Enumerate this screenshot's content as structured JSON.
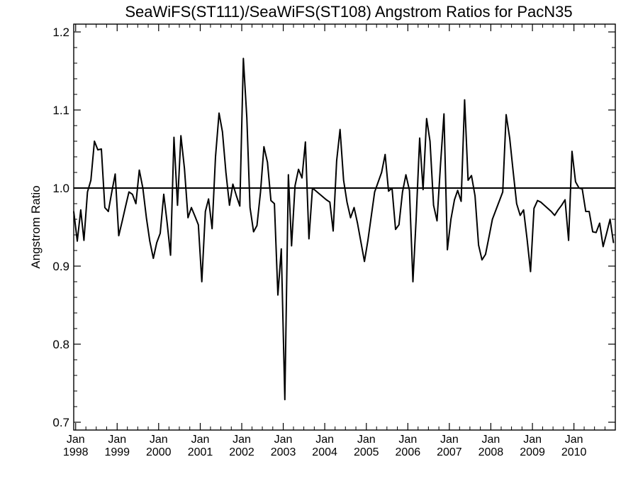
{
  "chart_data": {
    "type": "line",
    "title": "SeaWiFS(ST111)/SeaWiFS(ST108)  Angstrom Ratios for PacN35",
    "xlabel": "",
    "ylabel": "Angstrom Ratio",
    "ylim": [
      0.69,
      1.21
    ],
    "xlim": [
      "1997-12-15",
      "2010-12-31"
    ],
    "x_ticks": [
      {
        "date": "1998-01-01",
        "line1": "Jan",
        "line2": "1998"
      },
      {
        "date": "1999-01-01",
        "line1": "Jan",
        "line2": "1999"
      },
      {
        "date": "2000-01-01",
        "line1": "Jan",
        "line2": "2000"
      },
      {
        "date": "2001-01-01",
        "line1": "Jan",
        "line2": "2001"
      },
      {
        "date": "2002-01-01",
        "line1": "Jan",
        "line2": "2002"
      },
      {
        "date": "2003-01-01",
        "line1": "Jan",
        "line2": "2003"
      },
      {
        "date": "2004-01-01",
        "line1": "Jan",
        "line2": "2004"
      },
      {
        "date": "2005-01-01",
        "line1": "Jan",
        "line2": "2005"
      },
      {
        "date": "2006-01-01",
        "line1": "Jan",
        "line2": "2006"
      },
      {
        "date": "2007-01-01",
        "line1": "Jan",
        "line2": "2007"
      },
      {
        "date": "2008-01-01",
        "line1": "Jan",
        "line2": "2008"
      },
      {
        "date": "2009-01-01",
        "line1": "Jan",
        "line2": "2009"
      },
      {
        "date": "2010-01-01",
        "line1": "Jan",
        "line2": "2010"
      }
    ],
    "y_ticks": [
      {
        "value": 0.7,
        "label": "0.7"
      },
      {
        "value": 0.8,
        "label": "0.8"
      },
      {
        "value": 0.9,
        "label": "0.9"
      },
      {
        "value": 1.0,
        "label": "1.0"
      },
      {
        "value": 1.1,
        "label": "1.1"
      },
      {
        "value": 1.2,
        "label": "1.2"
      }
    ],
    "reference_line": {
      "y": 1.0
    },
    "series": [
      {
        "x": [
          "1997-12-15",
          "1998-01-15",
          "1998-02-15",
          "1998-03-15",
          "1998-04-15",
          "1998-05-15",
          "1998-06-15",
          "1998-07-15",
          "1998-08-15",
          "1998-09-15",
          "1998-10-15",
          "1998-11-15",
          "1998-12-15",
          "1999-01-15",
          "1999-02-15",
          "1999-03-15",
          "1999-04-15",
          "1999-05-15",
          "1999-06-15",
          "1999-07-15",
          "1999-08-15",
          "1999-09-15",
          "1999-10-15",
          "1999-11-15",
          "1999-12-15",
          "2000-01-15",
          "2000-02-15",
          "2000-03-15",
          "2000-04-15",
          "2000-05-15",
          "2000-06-15",
          "2000-07-15",
          "2000-08-15",
          "2000-09-15",
          "2000-10-15",
          "2000-11-15",
          "2000-12-15",
          "2001-01-15",
          "2001-02-15",
          "2001-03-15",
          "2001-04-15",
          "2001-05-15",
          "2001-06-15",
          "2001-07-15",
          "2001-08-15",
          "2001-09-15",
          "2001-10-15",
          "2001-11-15",
          "2001-12-15",
          "2002-01-15",
          "2002-02-15",
          "2002-03-15",
          "2002-04-15",
          "2002-05-15",
          "2002-06-15",
          "2002-07-15",
          "2002-08-15",
          "2002-09-15",
          "2002-10-15",
          "2002-11-15",
          "2002-12-15",
          "2003-01-15",
          "2003-02-15",
          "2003-03-15",
          "2003-04-15",
          "2003-05-15",
          "2003-06-15",
          "2003-07-15",
          "2003-08-15",
          "2003-09-15",
          "2004-01-15",
          "2004-02-15",
          "2004-03-15",
          "2004-04-15",
          "2004-05-15",
          "2004-06-15",
          "2004-07-15",
          "2004-08-15",
          "2004-09-15",
          "2004-10-15",
          "2004-11-15",
          "2004-12-15",
          "2005-01-15",
          "2005-03-15",
          "2005-05-15",
          "2005-06-15",
          "2005-07-15",
          "2005-08-15",
          "2005-09-15",
          "2005-10-15",
          "2005-11-15",
          "2005-12-15",
          "2006-01-15",
          "2006-02-15",
          "2006-03-15",
          "2006-04-15",
          "2006-05-15",
          "2006-06-15",
          "2006-07-15",
          "2006-08-15",
          "2006-09-15",
          "2006-10-15",
          "2006-11-15",
          "2006-12-15",
          "2007-01-15",
          "2007-02-15",
          "2007-03-15",
          "2007-04-15",
          "2007-05-15",
          "2007-06-15",
          "2007-07-15",
          "2007-08-15",
          "2007-09-15",
          "2007-10-15",
          "2007-11-15",
          "2007-12-15",
          "2008-01-15",
          "2008-04-15",
          "2008-05-15",
          "2008-06-15",
          "2008-07-15",
          "2008-08-15",
          "2008-09-15",
          "2008-10-15",
          "2008-11-15",
          "2008-12-15",
          "2009-01-15",
          "2009-02-15",
          "2009-03-15",
          "2009-04-15",
          "2009-06-15",
          "2009-07-15",
          "2009-08-15",
          "2009-09-15",
          "2009-10-15",
          "2009-11-15",
          "2009-12-15",
          "2010-01-15",
          "2010-02-15",
          "2010-03-15",
          "2010-04-15",
          "2010-05-15",
          "2010-06-15",
          "2010-07-15",
          "2010-08-15",
          "2010-09-15",
          "2010-10-15",
          "2010-11-15",
          "2010-12-15"
        ],
        "y": [
          0.97,
          0.932,
          0.972,
          0.933,
          0.995,
          1.01,
          1.06,
          1.049,
          1.05,
          0.975,
          0.97,
          0.995,
          1.018,
          0.939,
          0.958,
          0.976,
          0.995,
          0.992,
          0.98,
          1.023,
          1.0,
          0.962,
          0.932,
          0.91,
          0.93,
          0.942,
          0.992,
          0.956,
          0.914,
          1.065,
          0.978,
          1.067,
          1.025,
          0.962,
          0.975,
          0.964,
          0.953,
          0.88,
          0.97,
          0.986,
          0.948,
          1.04,
          1.096,
          1.072,
          1.02,
          0.978,
          1.005,
          0.99,
          0.977,
          1.166,
          1.09,
          0.975,
          0.944,
          0.952,
          0.995,
          1.053,
          1.033,
          0.984,
          0.98,
          0.863,
          0.922,
          0.729,
          1.017,
          0.926,
          1.003,
          1.024,
          1.013,
          1.059,
          0.935,
          1.0,
          0.985,
          0.982,
          0.945,
          1.035,
          1.075,
          1.01,
          0.982,
          0.962,
          0.975,
          0.955,
          0.93,
          0.906,
          0.933,
          0.995,
          1.02,
          1.043,
          0.996,
          1.0,
          0.947,
          0.953,
          0.995,
          1.017,
          0.997,
          0.88,
          0.96,
          1.064,
          0.998,
          1.089,
          1.06,
          0.978,
          0.958,
          1.03,
          1.095,
          0.921,
          0.96,
          0.985,
          0.997,
          0.983,
          1.113,
          1.01,
          1.016,
          0.99,
          0.927,
          0.908,
          0.915,
          0.937,
          0.96,
          0.995,
          1.094,
          1.064,
          1.022,
          0.98,
          0.965,
          0.972,
          0.934,
          0.893,
          0.974,
          0.984,
          0.982,
          0.978,
          0.97,
          0.965,
          0.972,
          0.978,
          0.985,
          0.933,
          1.047,
          1.008,
          1.0,
          0.999,
          0.97,
          0.97,
          0.944,
          0.943,
          0.955,
          0.925,
          0.942,
          0.96,
          0.93
        ]
      }
    ]
  }
}
